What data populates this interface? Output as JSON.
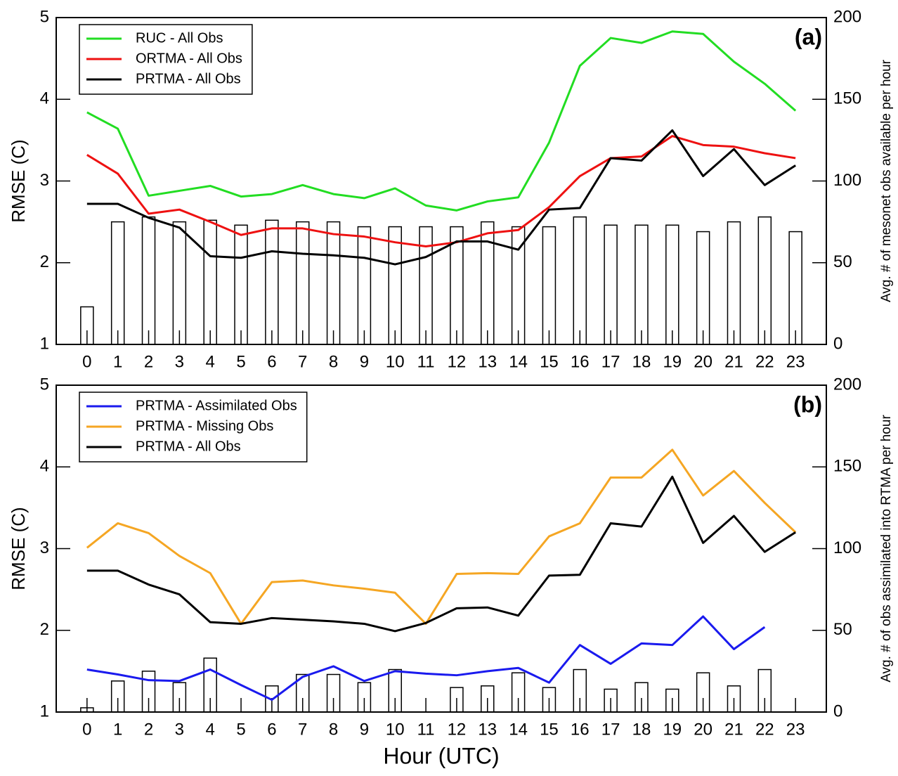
{
  "chart_data": [
    {
      "type": "combo",
      "panel_label": "(a)",
      "ylabel": "RMSE (C)",
      "y2label": "Avg. # of mesonet obs available per hour",
      "x": [
        0,
        1,
        2,
        3,
        4,
        5,
        6,
        7,
        8,
        9,
        10,
        11,
        12,
        13,
        14,
        15,
        16,
        17,
        18,
        19,
        20,
        21,
        22,
        23
      ],
      "xlim": [
        -1,
        24
      ],
      "xticks": [
        0,
        1,
        2,
        3,
        4,
        5,
        6,
        7,
        8,
        9,
        10,
        11,
        12,
        13,
        14,
        15,
        16,
        17,
        18,
        19,
        20,
        21,
        22,
        23
      ],
      "ylim": [
        1,
        5
      ],
      "yticks": [
        1,
        2,
        3,
        4,
        5
      ],
      "y2lim": [
        0,
        200
      ],
      "y2ticks": [
        0,
        50,
        100,
        150,
        200
      ],
      "legend": "upper left",
      "series": [
        {
          "mark": "bar",
          "axis": "y2",
          "color": "#000000",
          "values": [
            23,
            75,
            78,
            75,
            76,
            73,
            76,
            75,
            75,
            72,
            72,
            72,
            72,
            75,
            72,
            72,
            78,
            73,
            73,
            73,
            69,
            75,
            78,
            69
          ]
        },
        {
          "mark": "line",
          "name": "RUC - All Obs",
          "color": "#22dd22",
          "values": [
            3.84,
            3.64,
            2.82,
            2.88,
            2.94,
            2.81,
            2.84,
            2.95,
            2.84,
            2.79,
            2.91,
            2.7,
            2.64,
            2.75,
            2.8,
            3.47,
            4.41,
            4.75,
            4.69,
            4.83,
            4.8,
            4.46,
            4.19,
            3.86
          ]
        },
        {
          "mark": "line",
          "name": "ORTMA - All Obs",
          "color": "#ee1111",
          "values": [
            3.32,
            3.09,
            2.6,
            2.65,
            2.5,
            2.34,
            2.42,
            2.42,
            2.35,
            2.32,
            2.25,
            2.2,
            2.25,
            2.36,
            2.4,
            2.68,
            3.06,
            3.28,
            3.3,
            3.55,
            3.44,
            3.42,
            3.34,
            3.28
          ]
        },
        {
          "mark": "line",
          "name": "PRTMA - All Obs",
          "color": "#000000",
          "values": [
            2.72,
            2.72,
            2.55,
            2.43,
            2.08,
            2.06,
            2.14,
            2.11,
            2.09,
            2.06,
            1.98,
            2.07,
            2.26,
            2.26,
            2.16,
            2.65,
            2.67,
            3.28,
            3.25,
            3.62,
            3.06,
            3.39,
            2.95,
            3.19
          ]
        }
      ]
    },
    {
      "type": "combo",
      "panel_label": "(b)",
      "ylabel": "RMSE (C)",
      "y2label": "Avg. # of obs assimilated into RTMA per hour",
      "xlabel": "Hour (UTC)",
      "x": [
        0,
        1,
        2,
        3,
        4,
        5,
        6,
        7,
        8,
        9,
        10,
        11,
        12,
        13,
        14,
        15,
        16,
        17,
        18,
        19,
        20,
        21,
        22,
        23
      ],
      "xlim": [
        -1,
        24
      ],
      "xticks": [
        0,
        1,
        2,
        3,
        4,
        5,
        6,
        7,
        8,
        9,
        10,
        11,
        12,
        13,
        14,
        15,
        16,
        17,
        18,
        19,
        20,
        21,
        22,
        23
      ],
      "ylim": [
        1,
        5
      ],
      "yticks": [
        1,
        2,
        3,
        4,
        5
      ],
      "y2lim": [
        0,
        200
      ],
      "y2ticks": [
        0,
        50,
        100,
        150,
        200
      ],
      "legend": "upper left",
      "series": [
        {
          "mark": "bar",
          "axis": "y2",
          "color": "#000000",
          "values": [
            2.6,
            19,
            25,
            18,
            33,
            null,
            16,
            23,
            23,
            18,
            26,
            null,
            15,
            16,
            24,
            15,
            26,
            14,
            18,
            14,
            24,
            16,
            26,
            null
          ]
        },
        {
          "mark": "line",
          "name": "PRTMA - Assimilated Obs",
          "color": "#1a1aee",
          "values": [
            1.52,
            1.46,
            1.39,
            1.38,
            1.52,
            1.33,
            1.15,
            1.43,
            1.56,
            1.38,
            1.5,
            1.47,
            1.45,
            1.5,
            1.54,
            1.36,
            1.82,
            1.59,
            1.84,
            1.82,
            2.17,
            1.77,
            2.04,
            null
          ]
        },
        {
          "mark": "line",
          "name": "PRTMA - Missing Obs",
          "color": "#f5a623",
          "values": [
            3.01,
            3.31,
            3.19,
            2.91,
            2.7,
            2.08,
            2.59,
            2.61,
            2.55,
            2.51,
            2.46,
            2.08,
            2.69,
            2.7,
            2.69,
            3.15,
            3.31,
            3.87,
            3.87,
            4.21,
            3.65,
            3.95,
            3.56,
            3.2
          ]
        },
        {
          "mark": "line",
          "name": "PRTMA - All Obs",
          "color": "#000000",
          "values": [
            2.73,
            2.73,
            2.56,
            2.44,
            2.1,
            2.08,
            2.15,
            2.13,
            2.11,
            2.08,
            1.99,
            2.09,
            2.27,
            2.28,
            2.18,
            2.67,
            2.68,
            3.31,
            3.27,
            3.88,
            3.07,
            3.4,
            2.96,
            3.2
          ]
        }
      ]
    }
  ]
}
